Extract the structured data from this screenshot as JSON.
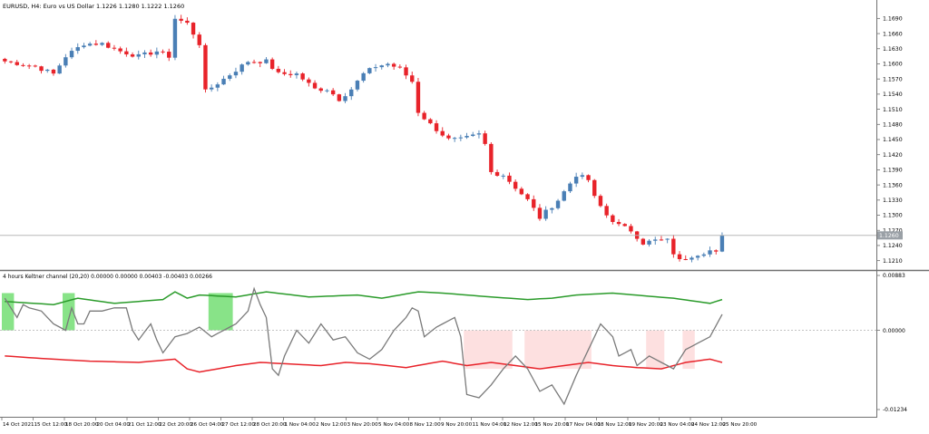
{
  "main_chart": {
    "title": "EURUSD, H4:  Euro vs US Dollar  1.1226 1.1280 1.1222 1.1260",
    "price_ticks": [
      "1.1690",
      "1.1660",
      "1.1630",
      "1.1600",
      "1.1570",
      "1.1540",
      "1.1510",
      "1.1480",
      "1.1450",
      "1.1420",
      "1.1390",
      "1.1360",
      "1.1330",
      "1.1300",
      "1.1270",
      "1.1240",
      "1.1210"
    ],
    "current_price_label": "1.1260",
    "colors": {
      "bull": "#4a7fb5",
      "bear": "#e8232a"
    }
  },
  "indicator": {
    "title": "4 hours Keltner channel (20,20) 0.00000 0.00000 0.00403 -0.00403 0.00266",
    "value_ticks": [
      "0.00883",
      "0.00000",
      "-0.01234"
    ],
    "colors": {
      "upper": "#2a9b2a",
      "lower": "#e8232a",
      "osc": "#7a7a7a",
      "green_fill": "#88e388",
      "pink_fill": "#fde0e0"
    }
  },
  "time_axis": {
    "labels": [
      "14 Oct 2021",
      "15 Oct 12:00",
      "18 Oct 20:00",
      "20 Oct 04:00",
      "21 Oct 12:00",
      "22 Oct 20:00",
      "26 Oct 04:00",
      "27 Oct 12:00",
      "28 Oct 20:00",
      "1 Nov 04:00",
      "2 Nov 12:00",
      "3 Nov 20:00",
      "5 Nov 04:00",
      "8 Nov 12:00",
      "9 Nov 20:00",
      "11 Nov 04:00",
      "12 Nov 12:00",
      "15 Nov 20:00",
      "17 Nov 04:00",
      "18 Nov 12:00",
      "19 Nov 20:00",
      "23 Nov 04:00",
      "24 Nov 12:00",
      "25 Nov 20:00"
    ]
  },
  "chart_data": {
    "type": "candlestick",
    "symbol": "EURUSD",
    "timeframe": "H4",
    "ylim": [
      1.1195,
      1.1705
    ],
    "close_path": [
      [
        0,
        1.1605
      ],
      [
        5,
        1.1595
      ],
      [
        8,
        1.158
      ],
      [
        10,
        1.1615
      ],
      [
        13,
        1.164
      ],
      [
        16,
        1.164
      ],
      [
        19,
        1.1625
      ],
      [
        22,
        1.1615
      ],
      [
        25,
        1.1625
      ],
      [
        27,
        1.1615
      ],
      [
        28,
        1.169
      ],
      [
        30,
        1.168
      ],
      [
        32,
        1.164
      ],
      [
        33,
        1.1545
      ],
      [
        36,
        1.157
      ],
      [
        40,
        1.1605
      ],
      [
        43,
        1.1605
      ],
      [
        45,
        1.158
      ],
      [
        48,
        1.158
      ],
      [
        51,
        1.155
      ],
      [
        53,
        1.155
      ],
      [
        55,
        1.153
      ],
      [
        57,
        1.155
      ],
      [
        59,
        1.158
      ],
      [
        61,
        1.1595
      ],
      [
        63,
        1.16
      ],
      [
        65,
        1.159
      ],
      [
        67,
        1.1565
      ],
      [
        68,
        1.1505
      ],
      [
        70,
        1.148
      ],
      [
        73,
        1.145
      ],
      [
        75,
        1.145
      ],
      [
        78,
        1.146
      ],
      [
        79,
        1.144
      ],
      [
        80,
        1.1385
      ],
      [
        82,
        1.138
      ],
      [
        84,
        1.1355
      ],
      [
        86,
        1.133
      ],
      [
        88,
        1.1295
      ],
      [
        91,
        1.133
      ],
      [
        94,
        1.138
      ],
      [
        96,
        1.137
      ],
      [
        97,
        1.1335
      ],
      [
        99,
        1.13
      ],
      [
        101,
        1.128
      ],
      [
        103,
        1.127
      ],
      [
        105,
        1.1245
      ],
      [
        107,
        1.125
      ],
      [
        109,
        1.125
      ],
      [
        110,
        1.1225
      ],
      [
        111,
        1.121
      ],
      [
        113,
        1.122
      ],
      [
        116,
        1.123
      ],
      [
        117,
        1.1225
      ],
      [
        118,
        1.126
      ]
    ],
    "current_price": 1.126
  },
  "indicator_data": {
    "ylim": [
      -0.01234,
      0.00883
    ],
    "upper": [
      [
        0,
        0.0045
      ],
      [
        8,
        0.004
      ],
      [
        12,
        0.005
      ],
      [
        18,
        0.0042
      ],
      [
        26,
        0.0048
      ],
      [
        28,
        0.006
      ],
      [
        30,
        0.005
      ],
      [
        32,
        0.0055
      ],
      [
        38,
        0.0052
      ],
      [
        43,
        0.006
      ],
      [
        50,
        0.0052
      ],
      [
        58,
        0.0055
      ],
      [
        62,
        0.005
      ],
      [
        68,
        0.006
      ],
      [
        72,
        0.0058
      ],
      [
        80,
        0.0052
      ],
      [
        86,
        0.0048
      ],
      [
        90,
        0.005
      ],
      [
        94,
        0.0055
      ],
      [
        100,
        0.0058
      ],
      [
        106,
        0.0053
      ],
      [
        110,
        0.005
      ],
      [
        113,
        0.0046
      ],
      [
        116,
        0.0042
      ],
      [
        118,
        0.0048
      ]
    ],
    "lower": [
      [
        0,
        -0.004
      ],
      [
        8,
        -0.0045
      ],
      [
        14,
        -0.0048
      ],
      [
        22,
        -0.005
      ],
      [
        28,
        -0.0045
      ],
      [
        30,
        -0.006
      ],
      [
        32,
        -0.0065
      ],
      [
        38,
        -0.0055
      ],
      [
        42,
        -0.005
      ],
      [
        46,
        -0.0052
      ],
      [
        52,
        -0.0055
      ],
      [
        56,
        -0.005
      ],
      [
        60,
        -0.0052
      ],
      [
        66,
        -0.0058
      ],
      [
        72,
        -0.0048
      ],
      [
        76,
        -0.0055
      ],
      [
        80,
        -0.005
      ],
      [
        84,
        -0.0055
      ],
      [
        88,
        -0.006
      ],
      [
        92,
        -0.0055
      ],
      [
        96,
        -0.005
      ],
      [
        100,
        -0.0055
      ],
      [
        104,
        -0.0058
      ],
      [
        108,
        -0.006
      ],
      [
        112,
        -0.005
      ],
      [
        116,
        -0.0045
      ],
      [
        118,
        -0.005
      ]
    ],
    "oscillator": [
      [
        0,
        0.005
      ],
      [
        2,
        0.002
      ],
      [
        3,
        0.004
      ],
      [
        4,
        0.0035
      ],
      [
        6,
        0.003
      ],
      [
        7,
        0.002
      ],
      [
        8,
        0.001
      ],
      [
        10,
        0.0
      ],
      [
        11,
        0.0035
      ],
      [
        12,
        0.001
      ],
      [
        13,
        0.001
      ],
      [
        14,
        0.003
      ],
      [
        16,
        0.003
      ],
      [
        18,
        0.0035
      ],
      [
        20,
        0.0035
      ],
      [
        21,
        0.0
      ],
      [
        22,
        -0.0015
      ],
      [
        24,
        0.001
      ],
      [
        25,
        -0.0015
      ],
      [
        26,
        -0.0035
      ],
      [
        28,
        -0.001
      ],
      [
        30,
        -0.0005
      ],
      [
        32,
        0.0005
      ],
      [
        34,
        -0.001
      ],
      [
        36,
        0.0
      ],
      [
        38,
        0.001
      ],
      [
        40,
        0.003
      ],
      [
        41,
        0.0065
      ],
      [
        42,
        0.004
      ],
      [
        43,
        0.002
      ],
      [
        44,
        -0.006
      ],
      [
        45,
        -0.007
      ],
      [
        46,
        -0.004
      ],
      [
        47,
        -0.002
      ],
      [
        48,
        0.0
      ],
      [
        50,
        -0.002
      ],
      [
        52,
        0.001
      ],
      [
        54,
        -0.0015
      ],
      [
        56,
        -0.001
      ],
      [
        58,
        -0.0035
      ],
      [
        60,
        -0.0045
      ],
      [
        62,
        -0.003
      ],
      [
        64,
        0.0
      ],
      [
        65,
        0.001
      ],
      [
        66,
        0.002
      ],
      [
        67,
        0.0035
      ],
      [
        68,
        0.003
      ],
      [
        69,
        -0.001
      ],
      [
        71,
        0.0005
      ],
      [
        72,
        0.001
      ],
      [
        74,
        0.002
      ],
      [
        75,
        -0.001
      ],
      [
        76,
        -0.01
      ],
      [
        78,
        -0.0105
      ],
      [
        80,
        -0.0085
      ],
      [
        82,
        -0.006
      ],
      [
        84,
        -0.004
      ],
      [
        86,
        -0.006
      ],
      [
        88,
        -0.0095
      ],
      [
        90,
        -0.0085
      ],
      [
        92,
        -0.0115
      ],
      [
        94,
        -0.007
      ],
      [
        96,
        -0.003
      ],
      [
        98,
        0.001
      ],
      [
        100,
        -0.001
      ],
      [
        101,
        -0.004
      ],
      [
        103,
        -0.003
      ],
      [
        104,
        -0.0055
      ],
      [
        106,
        -0.004
      ],
      [
        108,
        -0.005
      ],
      [
        110,
        -0.006
      ],
      [
        112,
        -0.003
      ],
      [
        114,
        -0.002
      ],
      [
        116,
        -0.001
      ],
      [
        118,
        0.0025
      ]
    ],
    "green_zones": [
      [
        0,
        1
      ],
      [
        10,
        11
      ],
      [
        34,
        37
      ]
    ],
    "pink_zones": [
      [
        76,
        83
      ],
      [
        86,
        96
      ],
      [
        106,
        108
      ],
      [
        112,
        113
      ]
    ]
  }
}
